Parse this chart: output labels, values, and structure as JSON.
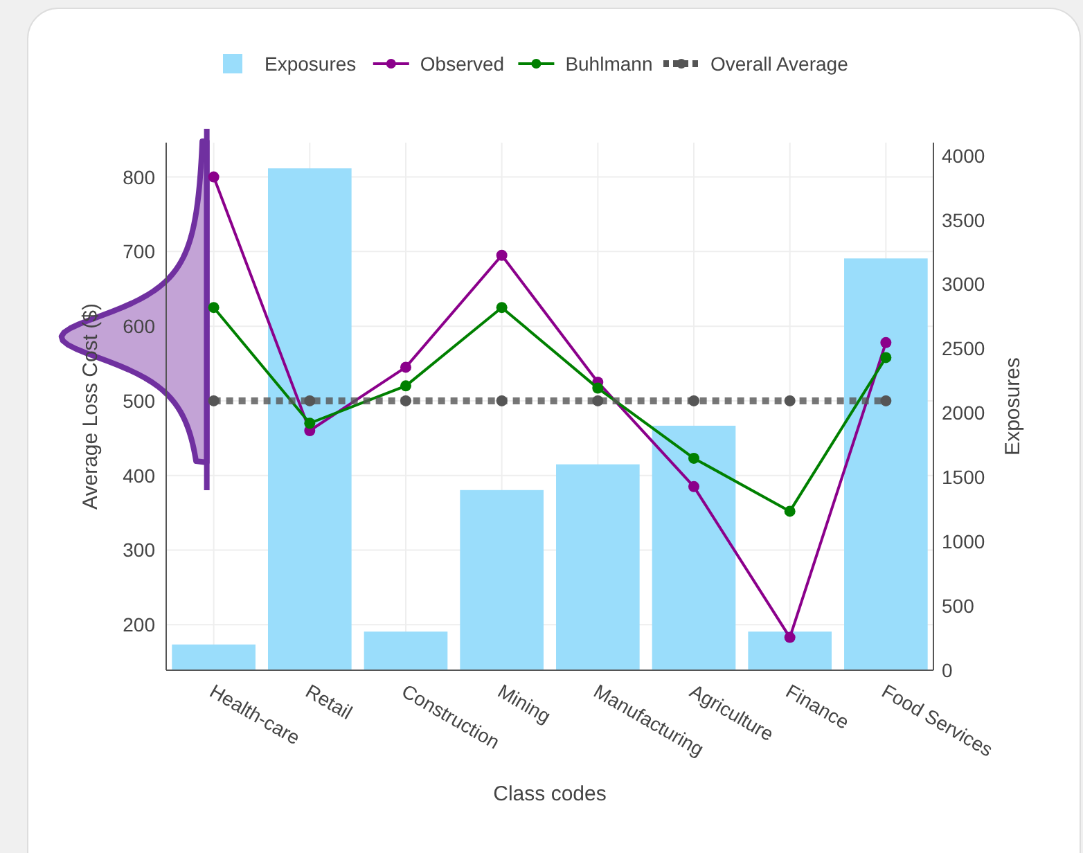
{
  "chart_data": {
    "type": "bar",
    "xlabel": "Class codes",
    "ylabel": "Average Loss Cost ($)",
    "y2label": "Exposures",
    "categories": [
      "Health-care",
      "Retail",
      "Construction",
      "Mining",
      "Manufacturing",
      "Agriculture",
      "Finance",
      "Food Services"
    ],
    "series": [
      {
        "name": "Exposures",
        "axis": "y2",
        "color": "#9addfb",
        "values": [
          200,
          3900,
          300,
          1400,
          1600,
          1900,
          300,
          3200
        ]
      },
      {
        "name": "Observed",
        "type": "line",
        "color": "#8b008b",
        "marker": "circle",
        "line_style": "solid",
        "values": [
          800,
          460,
          545,
          695,
          525,
          385,
          183,
          578
        ]
      },
      {
        "name": "Buhlmann",
        "type": "line",
        "color": "#008000",
        "marker": "circle",
        "line_style": "solid",
        "values": [
          625,
          470,
          520,
          625,
          517,
          423,
          352,
          558
        ]
      },
      {
        "name": "Overall Average",
        "type": "line",
        "color": "#555555",
        "marker": "circle",
        "line_style": "dotted",
        "values": [
          500,
          500,
          500,
          500,
          500,
          500,
          500,
          500
        ]
      }
    ],
    "ylim": [
      139,
      846
    ],
    "yticks": [
      200,
      300,
      400,
      500,
      600,
      700,
      800
    ],
    "y2lim": [
      0,
      4100
    ],
    "y2ticks": [
      0,
      500,
      1000,
      1500,
      2000,
      2500,
      3000,
      3500,
      4000
    ],
    "grid": true,
    "legend": "top"
  }
}
